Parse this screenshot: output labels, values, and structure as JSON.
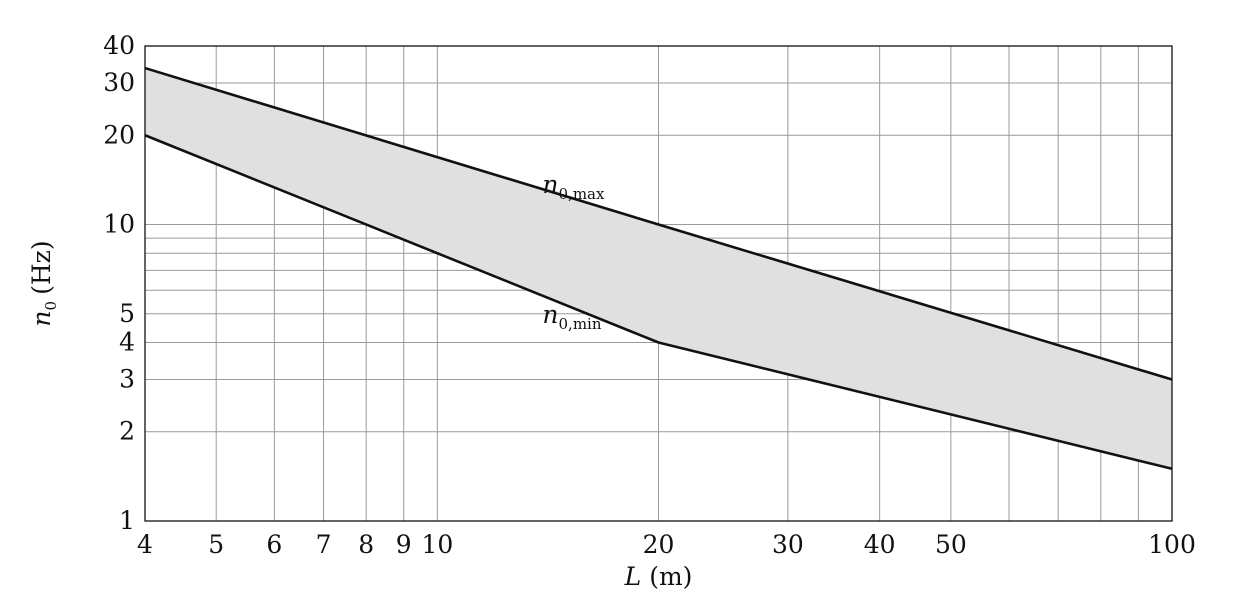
{
  "chart_data": {
    "type": "area",
    "title": "",
    "x_scale": "log",
    "y_scale": "log",
    "xlim": [
      4,
      100
    ],
    "ylim": [
      1,
      40
    ],
    "xlabel": {
      "var": "L",
      "unit": "(m)"
    },
    "ylabel": {
      "var": "n",
      "sub": "0",
      "unit": "(Hz)"
    },
    "x_ticks": [
      4,
      5,
      6,
      7,
      8,
      9,
      10,
      20,
      30,
      40,
      50,
      100
    ],
    "y_ticks": [
      1,
      2,
      3,
      4,
      5,
      10,
      20,
      30,
      40
    ],
    "x_grid": [
      4,
      5,
      6,
      7,
      8,
      9,
      10,
      20,
      30,
      40,
      50,
      60,
      70,
      80,
      90,
      100
    ],
    "y_grid": [
      1,
      2,
      3,
      4,
      5,
      6,
      7,
      8,
      9,
      10,
      20,
      30,
      40
    ],
    "grid": true,
    "fill_color": "#e0e0e0",
    "line_color": "#111111",
    "series": [
      {
        "name": "n_0,max",
        "label_var": "n",
        "label_sub": "0,max",
        "x": [
          4,
          20,
          100
        ],
        "y": [
          33.7,
          10.0,
          3.0
        ]
      },
      {
        "name": "n_0,min",
        "label_var": "n",
        "label_sub": "0,min",
        "x": [
          4,
          20,
          100
        ],
        "y": [
          20.0,
          4.0,
          1.5
        ]
      }
    ]
  }
}
